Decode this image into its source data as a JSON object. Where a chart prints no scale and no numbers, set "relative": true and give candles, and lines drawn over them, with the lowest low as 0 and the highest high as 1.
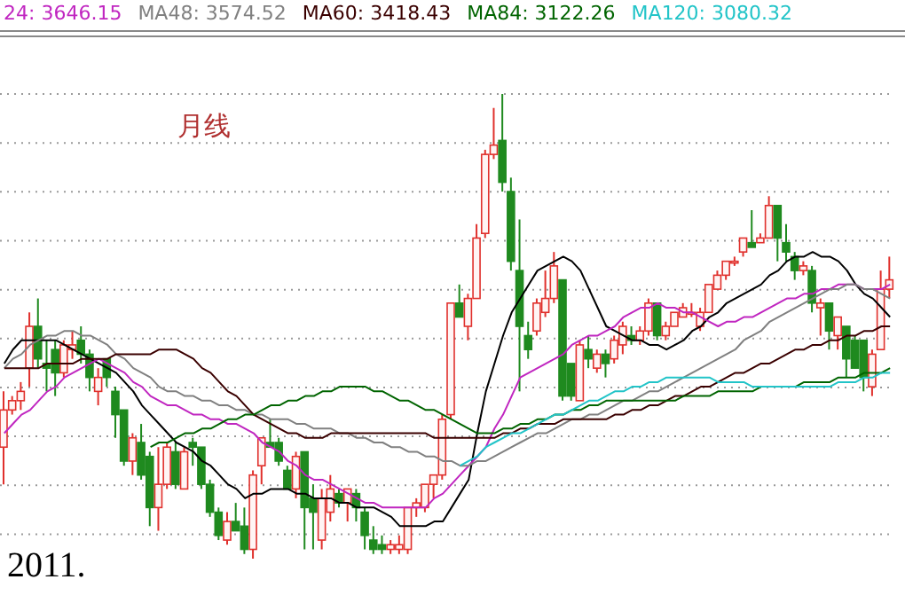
{
  "chart_data": {
    "type": "candlestick",
    "relative": true,
    "grid": "y",
    "legend": "top left",
    "tick_labels": false,
    "annotations": [
      "月线",
      "2011."
    ],
    "categories": [
      null,
      null,
      null,
      null,
      null,
      null,
      null,
      null,
      null,
      null,
      null,
      null,
      null,
      null,
      null,
      null,
      null,
      null,
      null,
      null,
      null,
      null,
      null,
      null,
      null,
      null,
      null,
      null,
      null,
      null,
      null,
      null,
      null,
      null,
      null,
      null,
      null,
      null,
      null,
      null,
      null,
      null,
      null,
      null,
      null,
      null,
      null,
      null,
      null,
      null,
      null,
      null,
      null,
      null,
      null,
      null,
      null,
      null,
      null,
      null,
      null,
      null,
      null,
      null,
      null,
      null,
      null,
      null,
      null,
      null,
      null,
      null,
      null,
      null,
      null,
      null,
      null,
      null,
      null,
      null,
      null,
      null,
      null,
      null,
      null,
      null,
      null,
      null,
      null,
      null,
      null,
      null,
      null,
      null,
      null,
      null,
      null,
      null,
      null,
      null,
      null,
      null,
      null,
      null
    ],
    "ohlc": [
      [
        0.24,
        0.36,
        0.16,
        0.32
      ],
      [
        0.32,
        0.35,
        0.31,
        0.34
      ],
      [
        0.34,
        0.38,
        0.32,
        0.36
      ],
      [
        0.41,
        0.53,
        0.37,
        0.5
      ],
      [
        0.5,
        0.56,
        0.41,
        0.43
      ],
      [
        0.42,
        0.47,
        0.36,
        0.41
      ],
      [
        0.45,
        0.47,
        0.35,
        0.4
      ],
      [
        0.4,
        0.47,
        0.39,
        0.46
      ],
      [
        0.45,
        0.49,
        0.43,
        0.46
      ],
      [
        0.47,
        0.5,
        0.42,
        0.44
      ],
      [
        0.44,
        0.45,
        0.36,
        0.39
      ],
      [
        0.36,
        0.41,
        0.33,
        0.39
      ],
      [
        0.43,
        0.43,
        0.37,
        0.39
      ],
      [
        0.36,
        0.37,
        0.26,
        0.31
      ],
      [
        0.32,
        0.32,
        0.2,
        0.21
      ],
      [
        0.21,
        0.27,
        0.18,
        0.26
      ],
      [
        0.25,
        0.29,
        0.17,
        0.18
      ],
      [
        0.22,
        0.23,
        0.07,
        0.11
      ],
      [
        0.11,
        0.24,
        0.06,
        0.16
      ],
      [
        0.16,
        0.25,
        0.15,
        0.24
      ],
      [
        0.23,
        0.25,
        0.15,
        0.16
      ],
      [
        0.15,
        0.24,
        0.15,
        0.23
      ],
      [
        0.25,
        0.26,
        0.2,
        0.24
      ],
      [
        0.24,
        0.24,
        0.15,
        0.16
      ],
      [
        0.16,
        0.17,
        0.09,
        0.1
      ],
      [
        0.1,
        0.11,
        0.04,
        0.05
      ],
      [
        0.04,
        0.1,
        0.03,
        0.08
      ],
      [
        0.08,
        0.12,
        0.06,
        0.06
      ],
      [
        0.07,
        0.11,
        0.01,
        0.02
      ],
      [
        0.02,
        0.19,
        0,
        0.18
      ],
      [
        0.2,
        0.26,
        0.16,
        0.26
      ],
      [
        0.25,
        0.3,
        0.24,
        0.24
      ],
      [
        0.25,
        0.26,
        0.2,
        0.21
      ],
      [
        0.19,
        0.2,
        0.15,
        0.15
      ],
      [
        0.15,
        0.23,
        0.13,
        0.22
      ],
      [
        0.23,
        0.23,
        0.02,
        0.11
      ],
      [
        0.13,
        0.16,
        0.02,
        0.1
      ],
      [
        0.04,
        0.15,
        0.02,
        0.13
      ],
      [
        0.1,
        0.18,
        0.08,
        0.15
      ],
      [
        0.14,
        0.15,
        0.11,
        0.12
      ],
      [
        0.12,
        0.15,
        0.08,
        0.15
      ],
      [
        0.14,
        0.15,
        0.08,
        0.11
      ],
      [
        0.1,
        0.11,
        0.02,
        0.05
      ],
      [
        0.04,
        0.07,
        0.01,
        0.02
      ],
      [
        0.03,
        0.05,
        0.01,
        0.02
      ],
      [
        0.02,
        0.04,
        0.01,
        0.03
      ],
      [
        0.02,
        0.05,
        0.01,
        0.03
      ],
      [
        0.02,
        0.11,
        0.01,
        0.11
      ],
      [
        0.11,
        0.13,
        0.09,
        0.12
      ],
      [
        0.11,
        0.16,
        0.1,
        0.16
      ],
      [
        0.16,
        0.18,
        0.13,
        0.18
      ],
      [
        0.18,
        0.31,
        0.17,
        0.3
      ],
      [
        0.31,
        0.55,
        0.3,
        0.55
      ],
      [
        0.55,
        0.59,
        0.52,
        0.52
      ],
      [
        0.5,
        0.57,
        0.47,
        0.56
      ],
      [
        0.56,
        0.72,
        0.56,
        0.69
      ],
      [
        0.7,
        0.88,
        0.69,
        0.87
      ],
      [
        0.87,
        0.97,
        0.86,
        0.89
      ],
      [
        0.9,
        1,
        0.79,
        0.81
      ],
      [
        0.79,
        0.82,
        0.62,
        0.64
      ],
      [
        0.62,
        0.73,
        0.36,
        0.5
      ],
      [
        0.48,
        0.51,
        0.43,
        0.45
      ],
      [
        0.49,
        0.56,
        0.48,
        0.55
      ],
      [
        0.53,
        0.62,
        0.52,
        0.56
      ],
      [
        0.56,
        0.66,
        0.55,
        0.63
      ],
      [
        0.6,
        0.6,
        0.34,
        0.35
      ],
      [
        0.42,
        0.42,
        0.34,
        0.35
      ],
      [
        0.34,
        0.47,
        0.34,
        0.46
      ],
      [
        0.45,
        0.48,
        0.41,
        0.43
      ],
      [
        0.41,
        0.45,
        0.4,
        0.44
      ],
      [
        0.44,
        0.45,
        0.39,
        0.42
      ],
      [
        0.43,
        0.48,
        0.42,
        0.47
      ],
      [
        0.46,
        0.51,
        0.44,
        0.5
      ],
      [
        0.48,
        0.5,
        0.46,
        0.47
      ],
      [
        0.47,
        0.5,
        0.46,
        0.49
      ],
      [
        0.49,
        0.56,
        0.48,
        0.55
      ],
      [
        0.55,
        0.55,
        0.47,
        0.48
      ],
      [
        0.48,
        0.51,
        0.47,
        0.5
      ],
      [
        0.5,
        0.53,
        0.5,
        0.53
      ],
      [
        0.52,
        0.55,
        0.52,
        0.54
      ],
      [
        0.53,
        0.55,
        0.52,
        0.53
      ],
      [
        0.5,
        0.54,
        0.49,
        0.53
      ],
      [
        0.53,
        0.59,
        0.53,
        0.59
      ],
      [
        0.58,
        0.62,
        0.58,
        0.61
      ],
      [
        0.61,
        0.64,
        0.6,
        0.64
      ],
      [
        0.64,
        0.65,
        0.63,
        0.64
      ],
      [
        0.66,
        0.69,
        0.65,
        0.69
      ],
      [
        0.68,
        0.75,
        0.67,
        0.67
      ],
      [
        0.68,
        0.7,
        0.68,
        0.69
      ],
      [
        0.69,
        0.78,
        0.69,
        0.76
      ],
      [
        0.76,
        0.76,
        0.64,
        0.69
      ],
      [
        0.68,
        0.72,
        0.64,
        0.66
      ],
      [
        0.65,
        0.66,
        0.6,
        0.62
      ],
      [
        0.62,
        0.64,
        0.61,
        0.63
      ],
      [
        0.62,
        0.63,
        0.53,
        0.55
      ],
      [
        0.54,
        0.56,
        0.48,
        0.55
      ],
      [
        0.55,
        0.55,
        0.45,
        0.49
      ],
      [
        0.48,
        0.52,
        0.45,
        0.52
      ],
      [
        0.5,
        0.5,
        0.39,
        0.43
      ],
      [
        0.47,
        0.48,
        0.41,
        0.41
      ],
      [
        0.47,
        0.47,
        0.36,
        0.39
      ],
      [
        0.37,
        0.45,
        0.35,
        0.44
      ],
      [
        0.45,
        0.62,
        0.45,
        0.58
      ],
      [
        0.58,
        0.65,
        0.56,
        0.6
      ]
    ],
    "series": [
      {
        "type": "line",
        "color": "#000000",
        "values": [
          0.42,
          0.45,
          0.47,
          0.47,
          0.47,
          0.47,
          0.47,
          0.46,
          0.45,
          0.44,
          0.43,
          0.42,
          0.41,
          0.4,
          0.38,
          0.36,
          0.33,
          0.31,
          0.29,
          0.27,
          0.25,
          0.24,
          0.23,
          0.21,
          0.2,
          0.18,
          0.16,
          0.15,
          0.13,
          0.14,
          0.14,
          0.15,
          0.15,
          0.15,
          0.14,
          0.14,
          0.13,
          0.13,
          0.13,
          0.12,
          0.12,
          0.11,
          0.11,
          0.11,
          0.1,
          0.09,
          0.07,
          0.07,
          0.07,
          0.07,
          0.08,
          0.08,
          0.11,
          0.14,
          0.17,
          0.27,
          0.36,
          0.42,
          0.48,
          0.53,
          0.56,
          0.59,
          0.62,
          0.63,
          0.64,
          0.65,
          0.64,
          0.62,
          0.58,
          0.54,
          0.5,
          0.49,
          0.48,
          0.47,
          0.47,
          0.46,
          0.46,
          0.45,
          0.46,
          0.47,
          0.49,
          0.5,
          0.52,
          0.53,
          0.55,
          0.56,
          0.57,
          0.58,
          0.59,
          0.61,
          0.62,
          0.64,
          0.65,
          0.65,
          0.66,
          0.65,
          0.65,
          0.64,
          0.62,
          0.59,
          0.57,
          0.56,
          0.54,
          0.52
        ]
      },
      {
        "type": "line",
        "name": "24: 3646.15",
        "color": "#c026c0",
        "values": [
          0.27,
          0.29,
          0.31,
          0.32,
          0.34,
          0.36,
          0.37,
          0.39,
          0.4,
          0.41,
          0.42,
          0.43,
          0.42,
          0.41,
          0.4,
          0.38,
          0.37,
          0.35,
          0.34,
          0.33,
          0.33,
          0.32,
          0.31,
          0.31,
          0.3,
          0.3,
          0.29,
          0.29,
          0.28,
          0.27,
          0.25,
          0.24,
          0.23,
          0.21,
          0.2,
          0.18,
          0.17,
          0.17,
          0.16,
          0.15,
          0.14,
          0.13,
          0.12,
          0.12,
          0.11,
          0.11,
          0.11,
          0.11,
          0.11,
          0.11,
          0.13,
          0.14,
          0.16,
          0.18,
          0.2,
          0.22,
          0.24,
          0.28,
          0.31,
          0.35,
          0.39,
          0.4,
          0.41,
          0.42,
          0.43,
          0.44,
          0.46,
          0.47,
          0.48,
          0.48,
          0.49,
          0.5,
          0.52,
          0.53,
          0.54,
          0.54,
          0.55,
          0.54,
          0.54,
          0.53,
          0.53,
          0.52,
          0.51,
          0.5,
          0.51,
          0.51,
          0.52,
          0.52,
          0.53,
          0.54,
          0.55,
          0.56,
          0.56,
          0.57,
          0.57,
          0.58,
          0.58,
          0.59,
          0.59,
          0.59,
          0.58,
          0.58,
          0.58,
          0.59
        ]
      },
      {
        "type": "line",
        "name": "MA48: 3574.52",
        "color": "#808080",
        "values": [
          0.41,
          0.43,
          0.44,
          0.46,
          0.47,
          0.48,
          0.48,
          0.49,
          0.49,
          0.48,
          0.48,
          0.47,
          0.46,
          0.44,
          0.43,
          0.41,
          0.4,
          0.39,
          0.37,
          0.36,
          0.36,
          0.35,
          0.35,
          0.34,
          0.34,
          0.33,
          0.33,
          0.32,
          0.32,
          0.31,
          0.31,
          0.3,
          0.3,
          0.3,
          0.29,
          0.29,
          0.28,
          0.28,
          0.28,
          0.27,
          0.27,
          0.26,
          0.26,
          0.25,
          0.25,
          0.24,
          0.24,
          0.23,
          0.23,
          0.22,
          0.22,
          0.21,
          0.21,
          0.2,
          0.2,
          0.21,
          0.21,
          0.22,
          0.23,
          0.24,
          0.25,
          0.26,
          0.27,
          0.27,
          0.28,
          0.29,
          0.3,
          0.3,
          0.31,
          0.31,
          0.32,
          0.33,
          0.34,
          0.34,
          0.35,
          0.36,
          0.36,
          0.37,
          0.38,
          0.39,
          0.4,
          0.41,
          0.42,
          0.43,
          0.44,
          0.45,
          0.47,
          0.48,
          0.49,
          0.51,
          0.52,
          0.53,
          0.54,
          0.55,
          0.56,
          0.57,
          0.58,
          0.58,
          0.59,
          0.59,
          0.58,
          0.58,
          0.57,
          0.56
        ]
      },
      {
        "type": "line",
        "name": "MA60: 3418.43",
        "color": "#3a0000",
        "values": [
          0.41,
          0.41,
          0.41,
          0.41,
          0.41,
          0.42,
          0.42,
          0.42,
          0.42,
          0.43,
          0.43,
          0.43,
          0.43,
          0.44,
          0.44,
          0.44,
          0.44,
          0.44,
          0.45,
          0.45,
          0.45,
          0.44,
          0.43,
          0.41,
          0.4,
          0.38,
          0.36,
          0.35,
          0.33,
          0.31,
          0.3,
          0.29,
          0.28,
          0.27,
          0.27,
          0.26,
          0.26,
          0.26,
          0.27,
          0.27,
          0.27,
          0.27,
          0.27,
          0.27,
          0.27,
          0.27,
          0.27,
          0.27,
          0.27,
          0.27,
          0.26,
          0.26,
          0.26,
          0.26,
          0.26,
          0.26,
          0.26,
          0.26,
          0.27,
          0.27,
          0.28,
          0.28,
          0.29,
          0.29,
          0.29,
          0.3,
          0.3,
          0.3,
          0.3,
          0.3,
          0.3,
          0.31,
          0.31,
          0.32,
          0.32,
          0.33,
          0.33,
          0.34,
          0.35,
          0.35,
          0.36,
          0.37,
          0.37,
          0.38,
          0.39,
          0.4,
          0.4,
          0.41,
          0.42,
          0.42,
          0.43,
          0.44,
          0.45,
          0.45,
          0.46,
          0.46,
          0.47,
          0.47,
          0.48,
          0.48,
          0.49,
          0.49,
          0.5,
          0.5
        ]
      },
      {
        "type": "line",
        "name": "MA84: 3122.26",
        "color": "#006400",
        "values": [
          null,
          null,
          null,
          null,
          null,
          null,
          null,
          null,
          null,
          null,
          null,
          null,
          null,
          null,
          null,
          null,
          null,
          0.24,
          0.25,
          0.25,
          0.26,
          0.27,
          0.27,
          0.28,
          0.28,
          0.29,
          0.3,
          0.3,
          0.31,
          0.31,
          0.32,
          0.33,
          0.33,
          0.34,
          0.34,
          0.35,
          0.35,
          0.36,
          0.36,
          0.37,
          0.37,
          0.37,
          0.37,
          0.36,
          0.36,
          0.35,
          0.34,
          0.34,
          0.33,
          0.32,
          0.32,
          0.31,
          0.3,
          0.29,
          0.28,
          0.27,
          0.27,
          0.27,
          0.28,
          0.28,
          0.29,
          0.29,
          0.3,
          0.3,
          0.31,
          0.31,
          0.32,
          0.32,
          0.33,
          0.33,
          0.34,
          0.34,
          0.34,
          0.34,
          0.34,
          0.34,
          0.34,
          0.34,
          0.34,
          0.35,
          0.35,
          0.35,
          0.35,
          0.36,
          0.36,
          0.36,
          0.36,
          0.36,
          0.37,
          null,
          null,
          null,
          0.37,
          0.38,
          0.38,
          0.38,
          0.38,
          0.39,
          0.39,
          0.39,
          0.4,
          0.4,
          0.4,
          0.41
        ]
      },
      {
        "type": "line",
        "name": "MA120: 3080.32",
        "color": "#22c4c8",
        "values": [
          null,
          null,
          null,
          null,
          null,
          null,
          null,
          null,
          null,
          null,
          null,
          null,
          null,
          null,
          null,
          null,
          null,
          null,
          null,
          null,
          null,
          null,
          null,
          null,
          null,
          null,
          null,
          null,
          null,
          null,
          null,
          null,
          null,
          null,
          null,
          null,
          null,
          null,
          null,
          null,
          null,
          null,
          null,
          null,
          null,
          null,
          null,
          null,
          null,
          null,
          null,
          null,
          null,
          0.2,
          0.21,
          0.22,
          0.24,
          0.25,
          0.26,
          0.27,
          0.27,
          0.28,
          0.29,
          0.3,
          0.31,
          0.31,
          0.32,
          0.33,
          0.34,
          0.34,
          0.35,
          0.36,
          0.36,
          0.37,
          0.37,
          0.38,
          0.38,
          0.39,
          0.39,
          0.39,
          0.39,
          0.39,
          0.39,
          0.38,
          0.38,
          0.38,
          0.38,
          0.37,
          0.37,
          0.37,
          0.37,
          0.37,
          0.37,
          0.37,
          0.37,
          0.37,
          0.37,
          0.38,
          0.38,
          0.38,
          0.39,
          0.39,
          0.4,
          0.4
        ]
      }
    ]
  }
}
